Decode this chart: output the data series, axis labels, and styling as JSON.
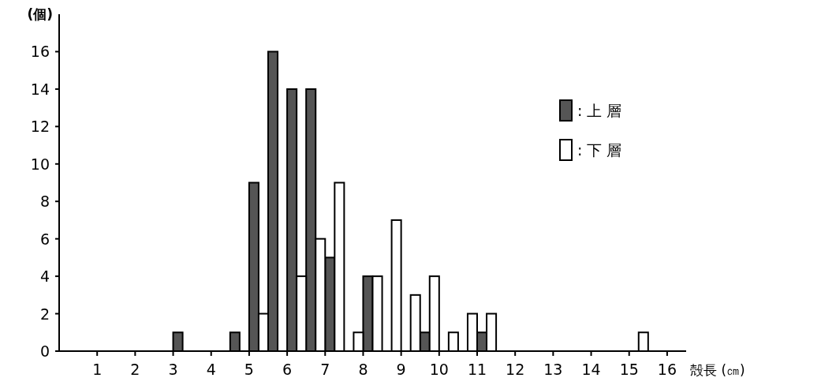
{
  "chart_data": {
    "type": "histogram",
    "xlabel": "殻長 (㎝)",
    "ylabel": "(個)",
    "bins": [
      3,
      3.5,
      4,
      4.5,
      5,
      5.5,
      6,
      6.5,
      7,
      7.5,
      8,
      8.5,
      9,
      9.5,
      10,
      10.5,
      11,
      11.5,
      12,
      12.5,
      13,
      13.5,
      14,
      14.5,
      15,
      15.5
    ],
    "series": [
      {
        "name": ": 上 層",
        "color": "#555555",
        "values": [
          1,
          0,
          0,
          1,
          9,
          16,
          14,
          14,
          5,
          0,
          4,
          0,
          0,
          1,
          0,
          0,
          1,
          0,
          0,
          0,
          0,
          0,
          0,
          0,
          0
        ]
      },
      {
        "name": ": 下 層",
        "color": "#ffffff",
        "values": [
          0,
          0,
          0,
          0,
          2,
          0,
          4,
          6,
          9,
          1,
          4,
          7,
          3,
          4,
          1,
          2,
          2,
          0,
          0,
          0,
          0,
          0,
          0,
          0,
          1
        ]
      }
    ],
    "xlim": [
      0,
      16.5
    ],
    "ylim": [
      0,
      18
    ],
    "xticks": [
      1,
      2,
      3,
      4,
      5,
      6,
      7,
      8,
      9,
      10,
      11,
      12,
      13,
      14,
      15,
      16
    ],
    "yticks": [
      0,
      2,
      4,
      6,
      8,
      10,
      12,
      14,
      16
    ],
    "legend": "top right"
  }
}
